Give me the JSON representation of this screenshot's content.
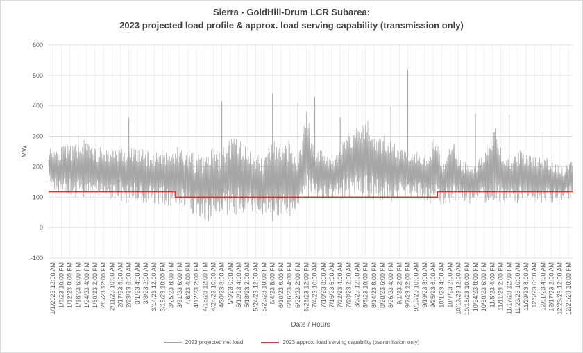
{
  "chart_data": {
    "type": "line",
    "title_line1": "Sierra - GoldHill-Drum LCR Subarea:",
    "title_line2": "2023 projected load profile & approx. load serving capability (transmission only)",
    "xlabel": "Date / Hours",
    "ylabel": "MW",
    "ylim": [
      -100,
      600
    ],
    "yticks": [
      -100,
      0,
      100,
      200,
      300,
      400,
      500,
      600
    ],
    "grid": true,
    "legend_position": "bottom",
    "x_tick_labels": [
      "1/1/2023 12:00 AM",
      "1/6/23 10:00 PM",
      "1/12/23 8:00 PM",
      "1/18/23 6:00 PM",
      "1/24/23 4:00 PM",
      "1/30/23 2:00 PM",
      "2/5/23 12:00 PM",
      "2/11/23 10:00 AM",
      "2/17/23 8:00 AM",
      "2/23/23 6:00 AM",
      "3/1/23 4:00 AM",
      "3/8/23 2:00 AM",
      "3/14/23 12:00 AM",
      "3/19/23 10:00 PM",
      "3/25/23 8:00 PM",
      "3/31/23 6:00 PM",
      "4/6/23 4:00 PM",
      "4/12/23 2:00 PM",
      "4/18/23 12:00 PM",
      "4/24/23 10:00 AM",
      "4/30/23 8:00 AM",
      "5/6/23 6:00 AM",
      "5/12/23 4:00 AM",
      "5/18/23 2:00 AM",
      "5/24/23 12:00 AM",
      "5/29/23 10:00 PM",
      "6/4/23 8:00 PM",
      "6/10/23 6:00 PM",
      "6/16/23 4:00 PM",
      "6/22/23 2:00 PM",
      "6/28/23 12:00 PM",
      "7/4/23 10:00 AM",
      "7/10/23 8:00 AM",
      "7/16/23 6:00 AM",
      "7/22/23 4:00 AM",
      "7/28/23 2:00 AM",
      "8/3/23 12:00 AM",
      "8/8/23 10:00 PM",
      "8/14/23 8:00 PM",
      "8/20/23 6:00 PM",
      "8/26/23 4:00 PM",
      "9/1/23 2:00 PM",
      "9/7/23 12:00 PM",
      "9/13/23 10:00 AM",
      "9/19/23 8:00 AM",
      "9/25/23 6:00 AM",
      "10/1/23 4:00 AM",
      "10/7/23 2:00 AM",
      "10/13/23 12:00 AM",
      "10/18/23 10:00 PM",
      "10/24/23 8:00 PM",
      "10/30/23 6:00 PM",
      "11/5/23 4:00 PM",
      "11/11/23 2:00 PM",
      "11/17/23 12:00 PM",
      "11/23/23 10:00 AM",
      "11/29/23 8:00 AM",
      "12/5/23 6:00 AM",
      "12/11/23 4:00 AM",
      "12/17/23 2:00 AM",
      "12/23/23 12:00 AM",
      "12/28/23 10:00 PM"
    ],
    "series": [
      {
        "name": "2023 projected net load",
        "color": "#a6a6a6",
        "style": "dense-hourly",
        "envelope_upper": [
          265,
          268,
          270,
          272,
          292,
          268,
          265,
          262,
          270,
          258,
          268,
          258,
          246,
          256,
          252,
          268,
          258,
          246,
          235,
          262,
          252,
          296,
          300,
          268,
          258,
          225,
          300,
          262,
          290,
          226,
          385,
          262,
          260,
          228,
          272,
          328,
          338,
          365,
          300,
          305,
          282,
          265,
          262,
          258,
          240,
          310,
          216,
          300,
          225,
          210,
          222,
          278,
          328,
          242,
          225,
          262,
          240,
          236,
          235,
          210,
          200,
          225
        ],
        "envelope_lower": [
          125,
          110,
          100,
          100,
          100,
          90,
          95,
          90,
          90,
          80,
          82,
          75,
          75,
          75,
          70,
          65,
          60,
          20,
          20,
          20,
          25,
          35,
          40,
          40,
          40,
          35,
          20,
          25,
          30,
          55,
          100,
          90,
          85,
          95,
          90,
          90,
          92,
          90,
          90,
          88,
          85,
          100,
          100,
          95,
          80,
          70,
          72,
          75,
          85,
          80,
          80,
          80,
          80,
          80,
          80,
          80,
          78,
          78,
          80,
          85,
          88,
          95
        ],
        "spikes": [
          {
            "x": "1/18/23 6:00 PM",
            "y": 305
          },
          {
            "x": "2/23/23 6:00 AM",
            "y": 362
          },
          {
            "x": "4/30/23 8:00 AM",
            "y": 415
          },
          {
            "x": "6/4/23 8:00 PM",
            "y": 442
          },
          {
            "x": "6/22/23 2:00 PM",
            "y": 410
          },
          {
            "x": "7/4/23 10:00 AM",
            "y": 428
          },
          {
            "x": "7/22/23 4:00 AM",
            "y": 362
          },
          {
            "x": "8/3/23 12:00 AM",
            "y": 478
          },
          {
            "x": "8/26/23 4:00 PM",
            "y": 400
          },
          {
            "x": "9/7/23 12:00 PM",
            "y": 518
          },
          {
            "x": "10/24/23 8:00 PM",
            "y": 375
          },
          {
            "x": "11/17/23 12:00 PM",
            "y": 372
          },
          {
            "x": "12/11/23 4:00 AM",
            "y": 312
          }
        ]
      },
      {
        "name": "2023 approx. load serving  capability (transmission only)",
        "color": "#e03030",
        "style": "step",
        "segments": [
          {
            "from": "1/1/2023 12:00 AM",
            "to": "3/31/23 6:00 PM",
            "y": 118
          },
          {
            "from": "3/31/23 6:00 PM",
            "to": "10/1/23 4:00 AM",
            "y": 100
          },
          {
            "from": "10/1/23 4:00 AM",
            "to": "12/31/23 11:00 PM",
            "y": 118
          }
        ]
      }
    ]
  }
}
